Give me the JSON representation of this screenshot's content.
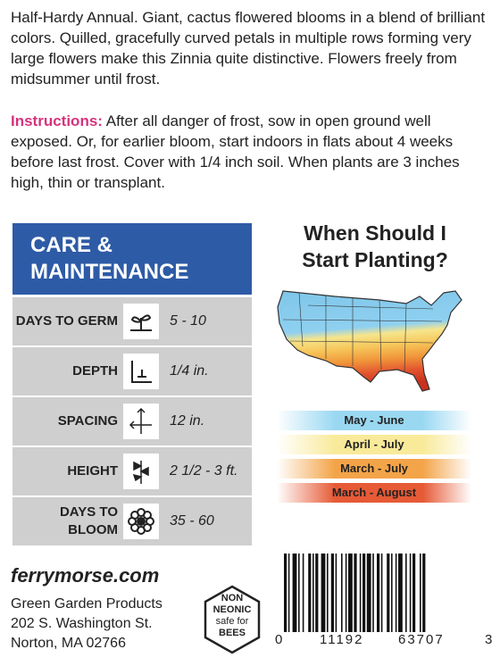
{
  "description": "Half-Hardy Annual. Giant, cactus flowered blooms in a blend of brilliant colors. Quilled, gracefully curved petals in multiple rows forming very large flowers make this Zinnia quite distinctive. Flowers freely from midsummer until frost.",
  "instructions": {
    "label": "Instructions:",
    "text": "After all danger of frost, sow in open ground well exposed. Or, for earlier bloom, start indoors in flats about 4 weeks before last frost. Cover with 1/4 inch soil. When plants are 3 inches high, thin or transplant."
  },
  "care": {
    "title": [
      "CARE &",
      "MAINTENANCE"
    ],
    "rows": [
      {
        "label": [
          "DAYS TO GERM"
        ],
        "value": "5 - 10"
      },
      {
        "label": [
          "DEPTH"
        ],
        "value": "1/4 in."
      },
      {
        "label": [
          "SPACING"
        ],
        "value": "12 in."
      },
      {
        "label": [
          "HEIGHT"
        ],
        "value": "2 1/2 - 3 ft."
      },
      {
        "label": [
          "DAYS TO",
          "BLOOM"
        ],
        "value": "35 - 60"
      }
    ]
  },
  "planting": {
    "title": [
      "When Should I",
      "Start Planting?"
    ],
    "legend": [
      "May - June",
      "April - July",
      "March - July",
      "March - August"
    ]
  },
  "footer": {
    "website": "ferrymorse.com",
    "company": "Green Garden Products",
    "address": [
      "202 S. Washington St.",
      "Norton, MA 02766"
    ],
    "badge": [
      "NON",
      "NEONIC",
      "safe for",
      "BEES"
    ]
  },
  "barcode": [
    "0",
    "11192",
    "63707",
    "3"
  ]
}
